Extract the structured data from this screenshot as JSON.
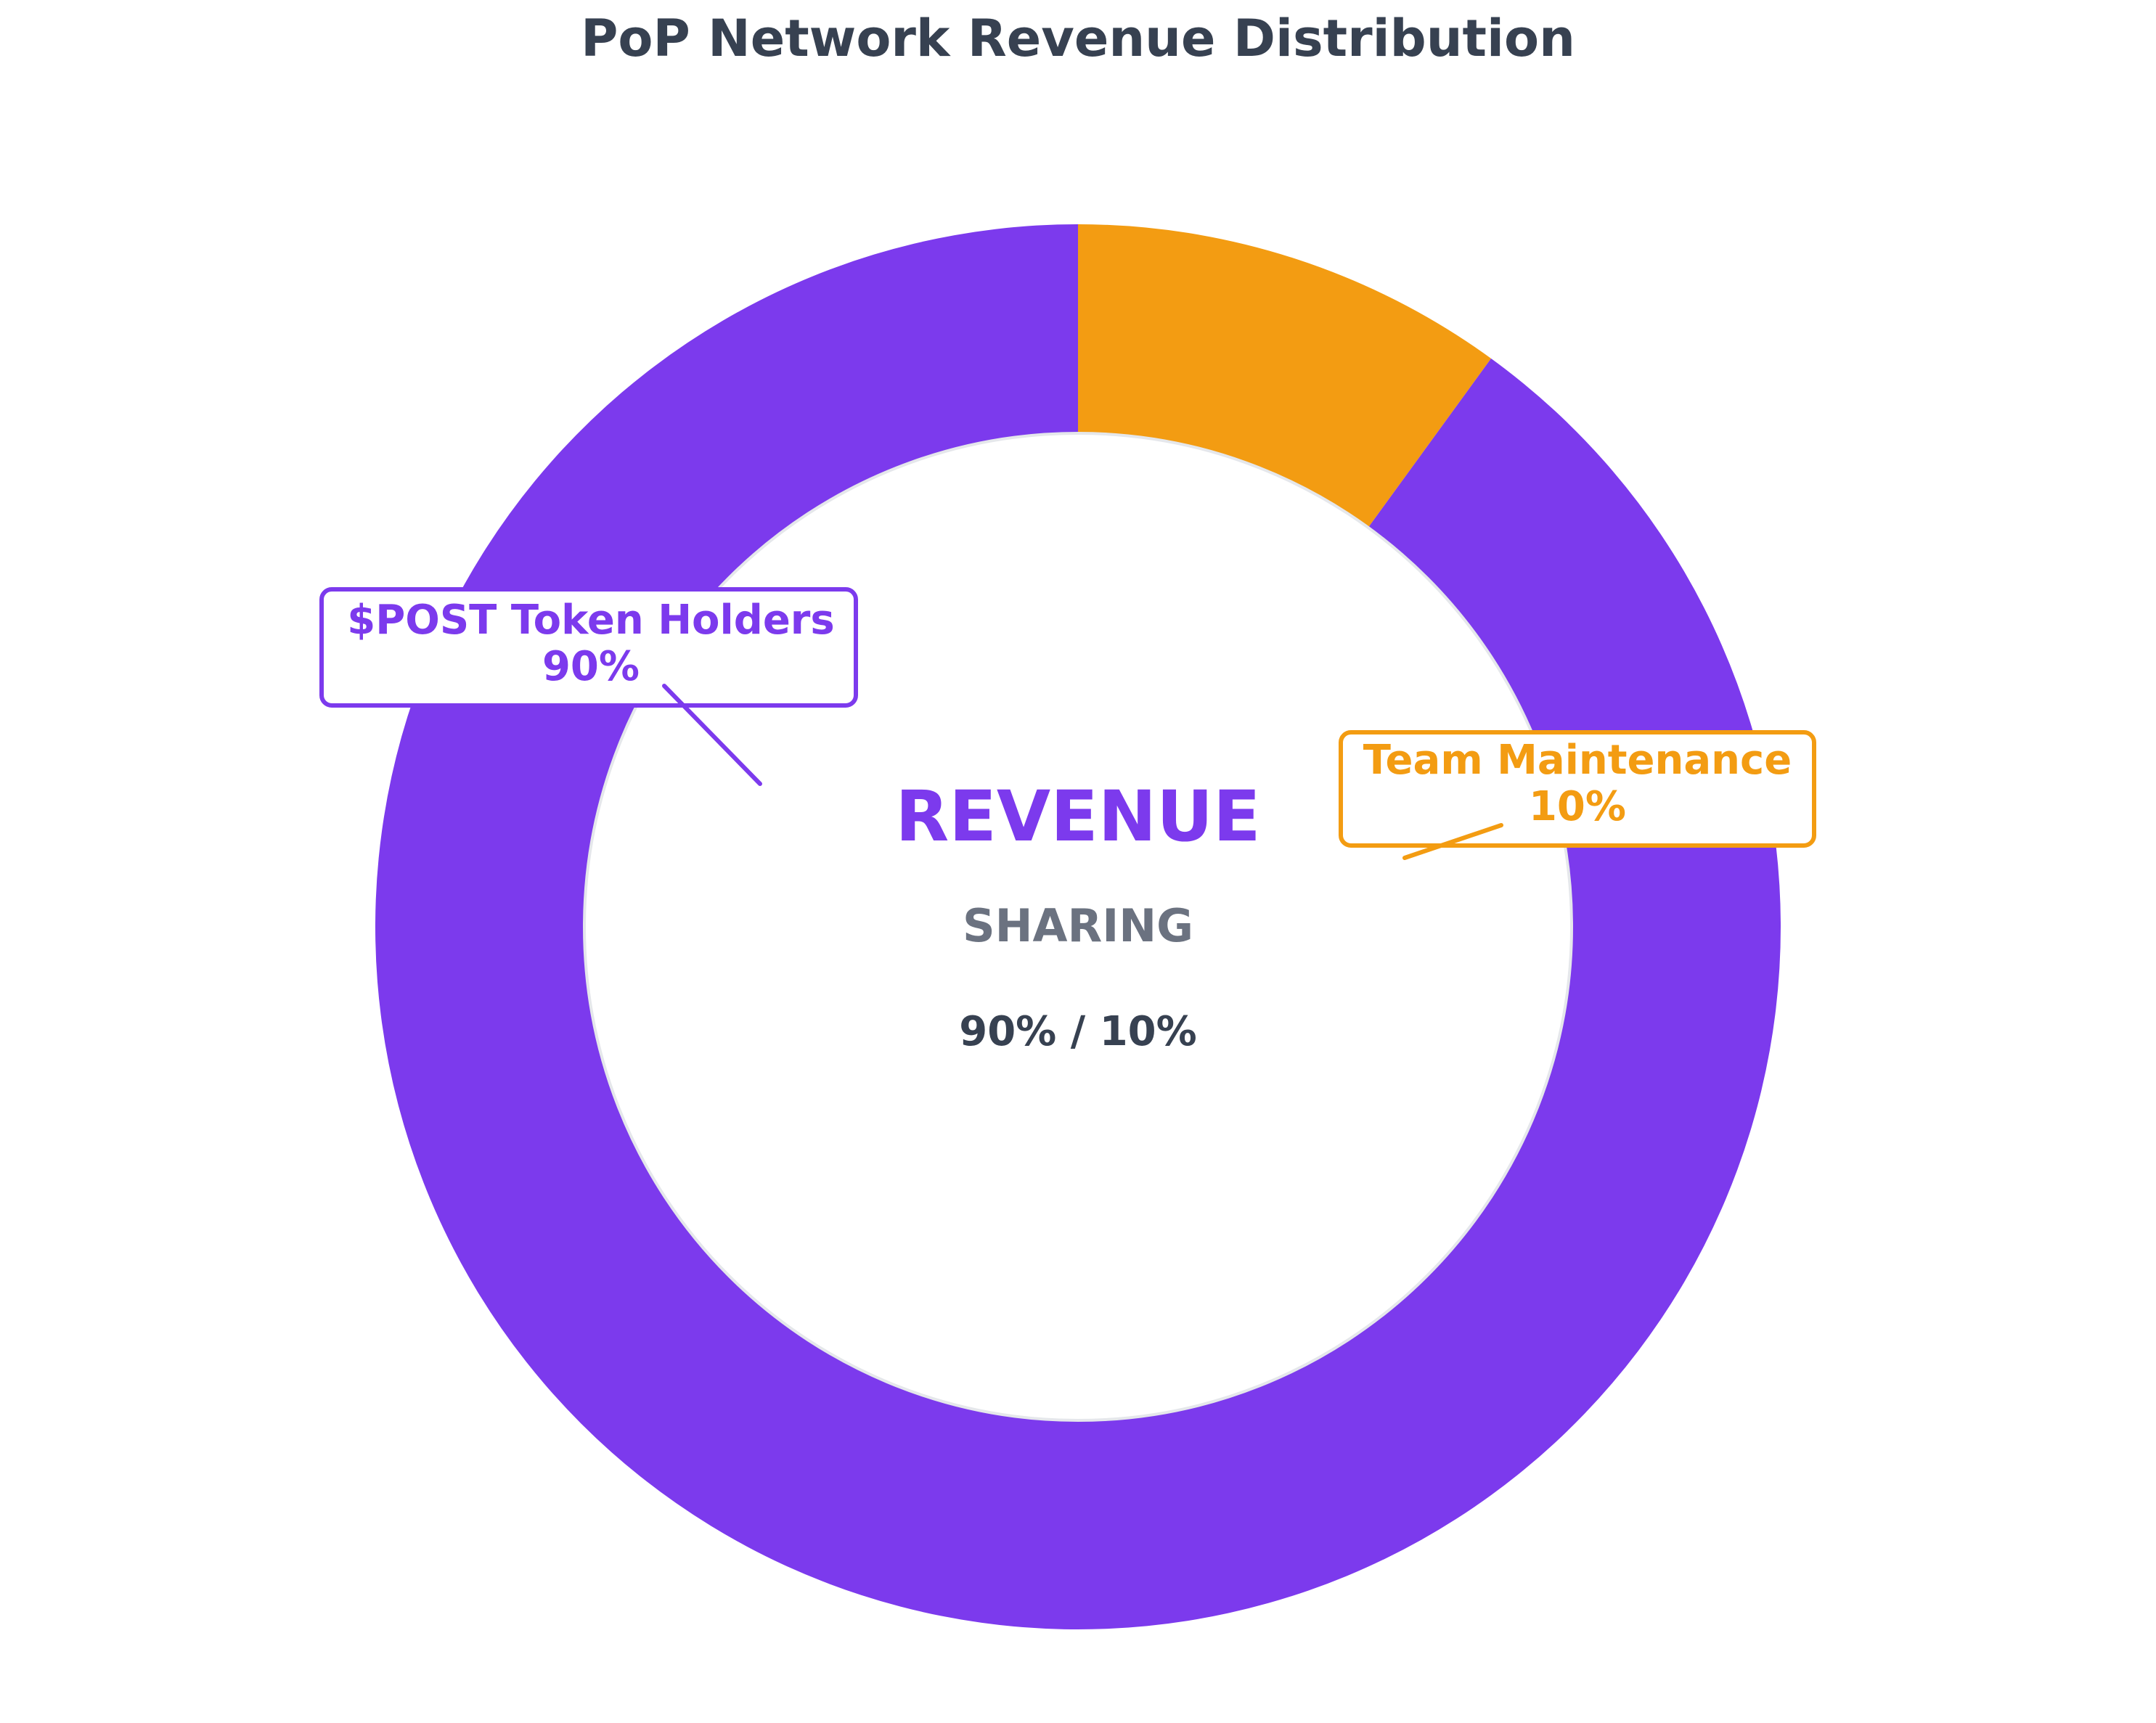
{
  "chart_data": {
    "type": "pie",
    "variant": "donut",
    "title": "PoP Network Revenue Distribution",
    "slices": [
      {
        "label": "$POST Token Holders",
        "value": 90,
        "value_label": "90%",
        "color": "#7c3aed"
      },
      {
        "label": "Team Maintenance",
        "value": 10,
        "value_label": "10%",
        "color": "#f39c12"
      }
    ],
    "center_text": {
      "title": "REVENUE",
      "subtitle": "SHARING",
      "ratio": "90% / 10%"
    },
    "colors": {
      "title": "#374151",
      "center_title": "#7c3aed",
      "center_subtitle": "#6b7280",
      "center_ratio": "#374151",
      "inner_border": "#e5e7eb"
    }
  }
}
